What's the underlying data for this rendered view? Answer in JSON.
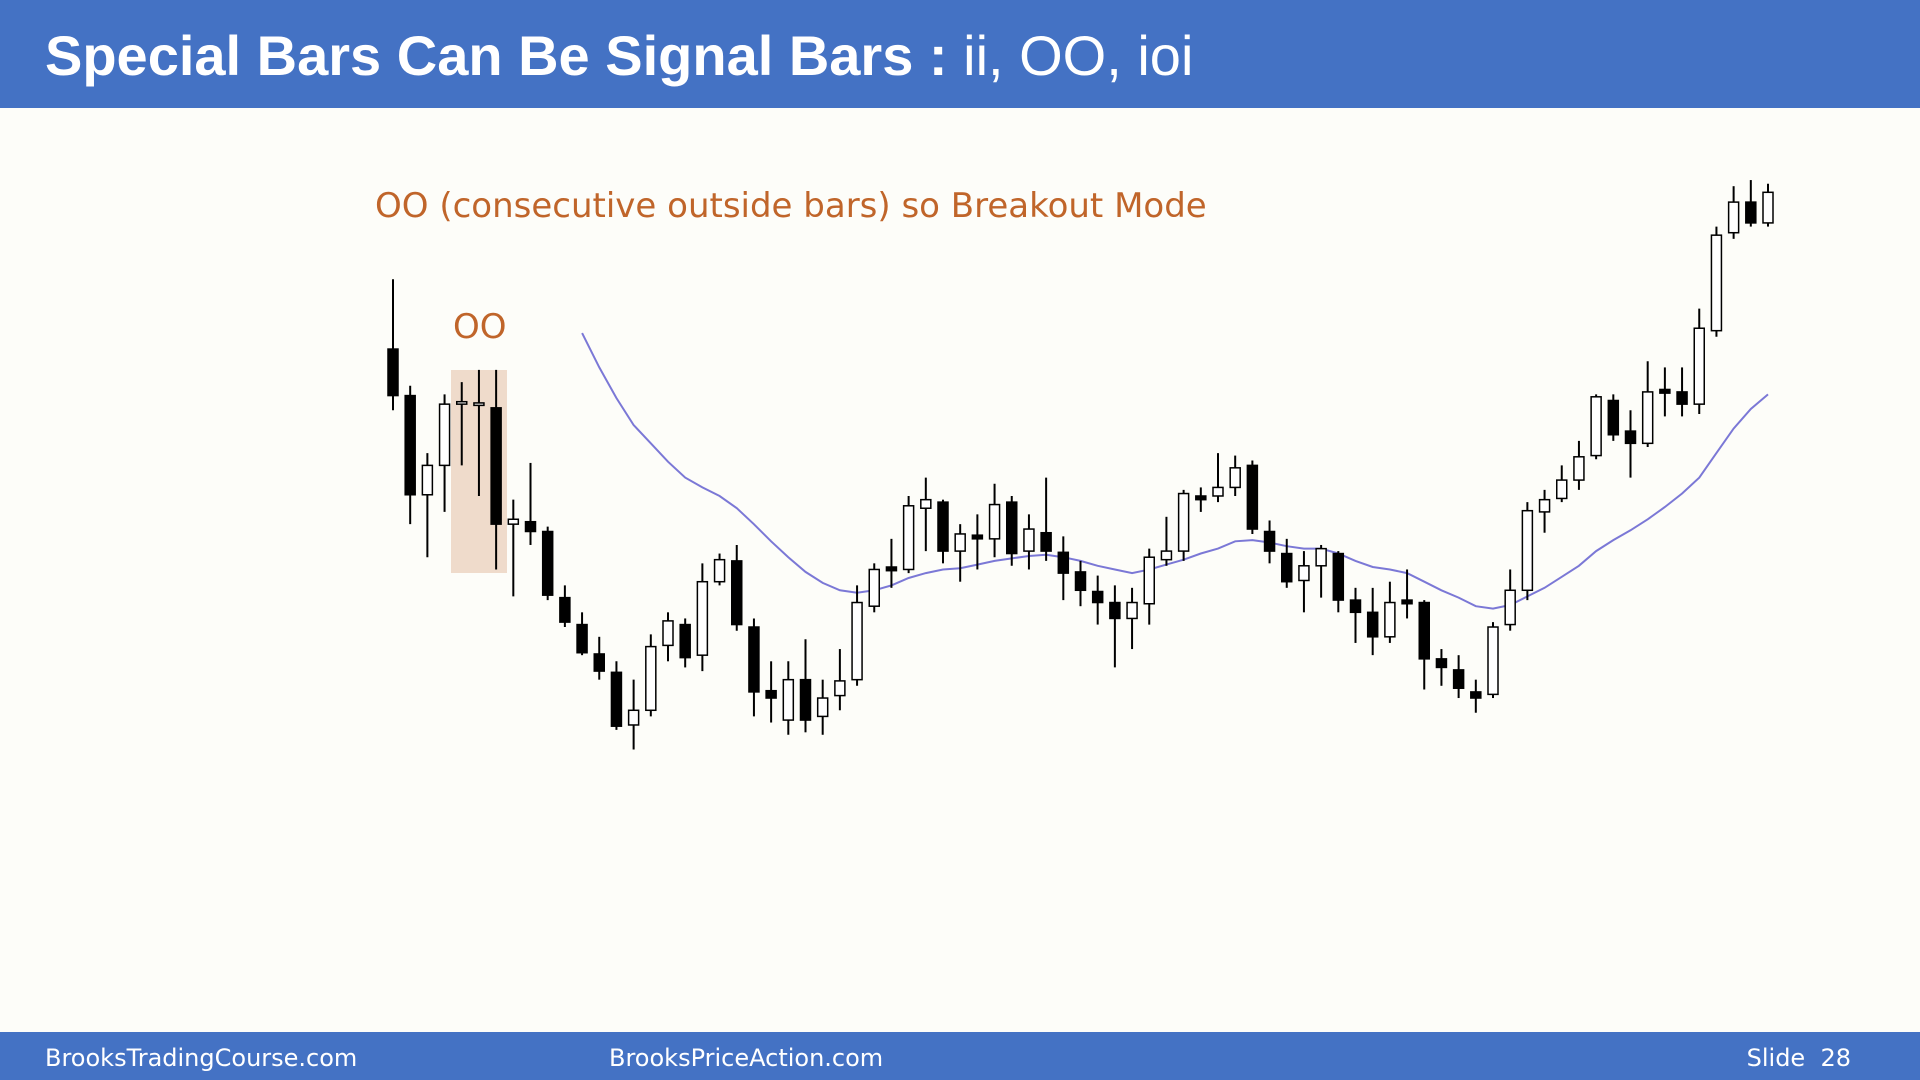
{
  "header": {
    "title": "Special Bars Can Be Signal Bars :",
    "title_tail": "ii, OO, ioi"
  },
  "chart_data": {
    "type": "candlestick",
    "annotations": [
      "OO (consecutive outside bars) so Breakout Mode",
      "OO"
    ],
    "up_color": "#ffffff",
    "down_color": "#000000",
    "ylim": [
      0,
      530
    ],
    "open": [
      365,
      327,
      246,
      270,
      320,
      319,
      317,
      222,
      224,
      216,
      162,
      140,
      116,
      101,
      58,
      70,
      123,
      140,
      115,
      175,
      192,
      138,
      86,
      62,
      95,
      65,
      82,
      95,
      155,
      187,
      185,
      235,
      240,
      200,
      213,
      210,
      240,
      200,
      215,
      199,
      183,
      167,
      158,
      145,
      157,
      193,
      200,
      245,
      245,
      252,
      270,
      216,
      198,
      176,
      188,
      198,
      160,
      150,
      130,
      160,
      158,
      112,
      103,
      85,
      83,
      140,
      168,
      232,
      243,
      258,
      278,
      323,
      298,
      288,
      332,
      330,
      320,
      380,
      460,
      485,
      468
    ],
    "high": [
      422,
      335,
      280,
      328,
      338,
      348,
      348,
      242,
      272,
      220,
      172,
      150,
      130,
      110,
      95,
      132,
      150,
      145,
      190,
      198,
      205,
      145,
      110,
      110,
      128,
      95,
      120,
      172,
      190,
      210,
      245,
      260,
      242,
      222,
      230,
      255,
      245,
      230,
      260,
      212,
      192,
      180,
      172,
      170,
      202,
      228,
      250,
      252,
      280,
      278,
      274,
      225,
      210,
      200,
      205,
      200,
      170,
      170,
      175,
      185,
      160,
      120,
      115,
      95,
      142,
      185,
      240,
      250,
      270,
      290,
      328,
      328,
      315,
      355,
      350,
      350,
      398,
      465,
      498,
      503,
      500
    ],
    "low": [
      315,
      222,
      195,
      232,
      270,
      245,
      185,
      163,
      205,
      160,
      138,
      115,
      95,
      54,
      38,
      65,
      110,
      105,
      102,
      172,
      135,
      65,
      60,
      50,
      52,
      50,
      70,
      90,
      150,
      170,
      182,
      200,
      190,
      175,
      185,
      195,
      188,
      185,
      192,
      160,
      155,
      140,
      105,
      120,
      140,
      188,
      192,
      232,
      240,
      245,
      214,
      190,
      170,
      150,
      162,
      150,
      125,
      115,
      125,
      145,
      87,
      90,
      80,
      68,
      80,
      135,
      160,
      215,
      240,
      250,
      275,
      290,
      260,
      285,
      310,
      310,
      312,
      375,
      455,
      465,
      465
    ],
    "close": [
      327,
      246,
      270,
      320,
      322,
      321,
      222,
      226,
      216,
      164,
      142,
      117,
      102,
      57,
      70,
      122,
      143,
      113,
      175,
      193,
      140,
      85,
      80,
      95,
      62,
      80,
      94,
      158,
      185,
      184,
      237,
      242,
      200,
      214,
      210,
      238,
      198,
      218,
      200,
      182,
      168,
      158,
      145,
      158,
      195,
      200,
      247,
      242,
      252,
      268,
      218,
      200,
      175,
      188,
      202,
      160,
      150,
      130,
      158,
      157,
      112,
      105,
      88,
      80,
      138,
      168,
      233,
      242,
      258,
      277,
      326,
      295,
      288,
      330,
      329,
      320,
      382,
      458,
      485,
      468,
      493
    ],
    "moving_average": {
      "color": "#7b78d6",
      "values": [
        null,
        null,
        null,
        null,
        null,
        null,
        null,
        null,
        null,
        null,
        null,
        378,
        350,
        325,
        303,
        288,
        273,
        260,
        252,
        245,
        235,
        222,
        208,
        195,
        183,
        174,
        168,
        166,
        168,
        172,
        178,
        182,
        185,
        186,
        189,
        192,
        194,
        196,
        197,
        195,
        192,
        188,
        185,
        182,
        185,
        189,
        193,
        198,
        202,
        208,
        209,
        207,
        204,
        202,
        202,
        198,
        192,
        187,
        185,
        182,
        175,
        168,
        162,
        155,
        153,
        156,
        163,
        170,
        179,
        188,
        200,
        209,
        217,
        226,
        236,
        247,
        260,
        280,
        300,
        316,
        328
      ]
    }
  },
  "footer": {
    "left": "BrooksTradingCourse.com",
    "center": "BrooksPriceAction.com",
    "right": "Slide  28"
  }
}
